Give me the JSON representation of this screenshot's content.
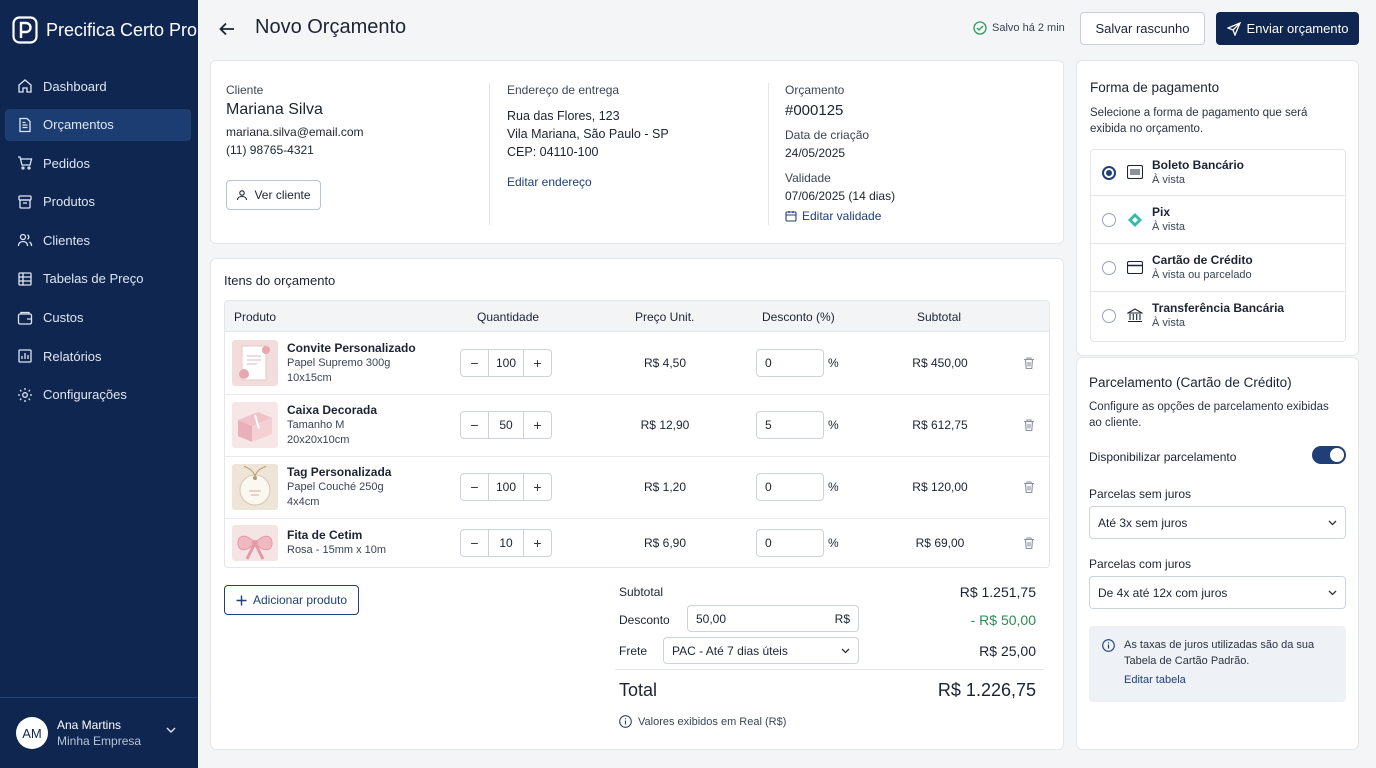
{
  "app": {
    "name": "Precifica Certo Pro"
  },
  "sidebar": {
    "items": [
      {
        "label": "Dashboard",
        "icon": "home-icon"
      },
      {
        "label": "Orçamentos",
        "icon": "document-icon",
        "active": true
      },
      {
        "label": "Pedidos",
        "icon": "cart-icon"
      },
      {
        "label": "Produtos",
        "icon": "box-icon"
      },
      {
        "label": "Clientes",
        "icon": "users-icon"
      },
      {
        "label": "Tabelas de Preço",
        "icon": "table-icon"
      },
      {
        "label": "Custos",
        "icon": "wallet-icon"
      },
      {
        "label": "Relatórios",
        "icon": "report-icon"
      },
      {
        "label": "Configurações",
        "icon": "gear-icon"
      }
    ],
    "user": {
      "initials": "AM",
      "name": "Ana Martins",
      "company": "Minha Empresa"
    }
  },
  "header": {
    "title": "Novo Orçamento",
    "saved": "Salvo há 2 min",
    "draft_label": "Salvar rascunho",
    "send_label": "Enviar orçamento"
  },
  "client": {
    "label": "Cliente",
    "name": "Mariana Silva",
    "email": "mariana.silva@email.com",
    "phone": "(11) 98765-4321",
    "view_label": "Ver cliente"
  },
  "address": {
    "label": "Endereço de entrega",
    "line1": "Rua das Flores, 123",
    "line2": "Vila Mariana, São Paulo - SP",
    "line3": "CEP: 04110-100",
    "edit_label": "Editar endereço"
  },
  "quote": {
    "label": "Orçamento",
    "number": "#000125",
    "created_label": "Data de criação",
    "created": "24/05/2025",
    "validity_label": "Validade",
    "validity": "07/06/2025 (14 dias)",
    "edit_validity": "Editar validade"
  },
  "items": {
    "title": "Itens do orçamento",
    "columns": {
      "product": "Produto",
      "qty": "Quantidade",
      "price": "Preço Unit.",
      "discount": "Desconto (%)",
      "subtotal": "Subtotal"
    },
    "rows": [
      {
        "name": "Convite Personalizado",
        "desc1": "Papel Supremo 300g",
        "desc2": "10x15cm",
        "qty": "100",
        "price": "R$ 4,50",
        "discount": "0",
        "subtotal": "R$ 450,00"
      },
      {
        "name": "Caixa Decorada",
        "desc1": "Tamanho M",
        "desc2": "20x20x10cm",
        "qty": "50",
        "price": "R$ 12,90",
        "discount": "5",
        "subtotal": "R$ 612,75"
      },
      {
        "name": "Tag Personalizada",
        "desc1": "Papel Couché 250g",
        "desc2": "4x4cm",
        "qty": "100",
        "price": "R$ 1,20",
        "discount": "0",
        "subtotal": "R$ 120,00"
      },
      {
        "name": "Fita de Cetim",
        "desc1": "Rosa - 15mm x 10m",
        "desc2": "",
        "qty": "10",
        "price": "R$ 6,90",
        "discount": "0",
        "subtotal": "R$ 69,00"
      }
    ],
    "pct": "%",
    "add_label": "Adicionar produto"
  },
  "totals": {
    "subtotal_label": "Subtotal",
    "subtotal": "R$ 1.251,75",
    "discount_label": "Desconto",
    "discount_input": "50,00",
    "discount_currency": "R$",
    "discount": "- R$ 50,00",
    "shipping_label": "Frete",
    "shipping_option": "PAC - Até 7 dias úteis",
    "shipping": "R$ 25,00",
    "total_label": "Total",
    "total": "R$ 1.226,75",
    "note": "Valores exibidos em Real (R$)"
  },
  "payment": {
    "title": "Forma de pagamento",
    "desc1": "Selecione a forma de pagamento que será",
    "desc2": "exibida no orçamento.",
    "options": [
      {
        "title": "Boleto Bancário",
        "sub": "À vista",
        "selected": true
      },
      {
        "title": "Pix",
        "sub": "À vista"
      },
      {
        "title": "Cartão de Crédito",
        "sub": "À vista ou parcelado"
      },
      {
        "title": "Transferência Bancária",
        "sub": "À vista"
      }
    ]
  },
  "installments": {
    "title": "Parcelamento (Cartão de Crédito)",
    "desc1": "Configure as opções de parcelamento exibidas",
    "desc2": "ao cliente.",
    "toggle_label": "Disponibilizar parcelamento",
    "toggle_on": true,
    "no_interest_label": "Parcelas sem juros",
    "no_interest_value": "Até 3x sem juros",
    "interest_label": "Parcelas com juros",
    "interest_value": "De 4x até 12x com juros",
    "info1": "As taxas de juros utilizadas são da sua",
    "info2": "Tabela de Cartão Padrão.",
    "info_link": "Editar tabela"
  },
  "colors": {
    "sidebar": "#0f2650",
    "accent": "#1f3f78",
    "discount": "#2e8b57",
    "pix": "#32bcad"
  }
}
